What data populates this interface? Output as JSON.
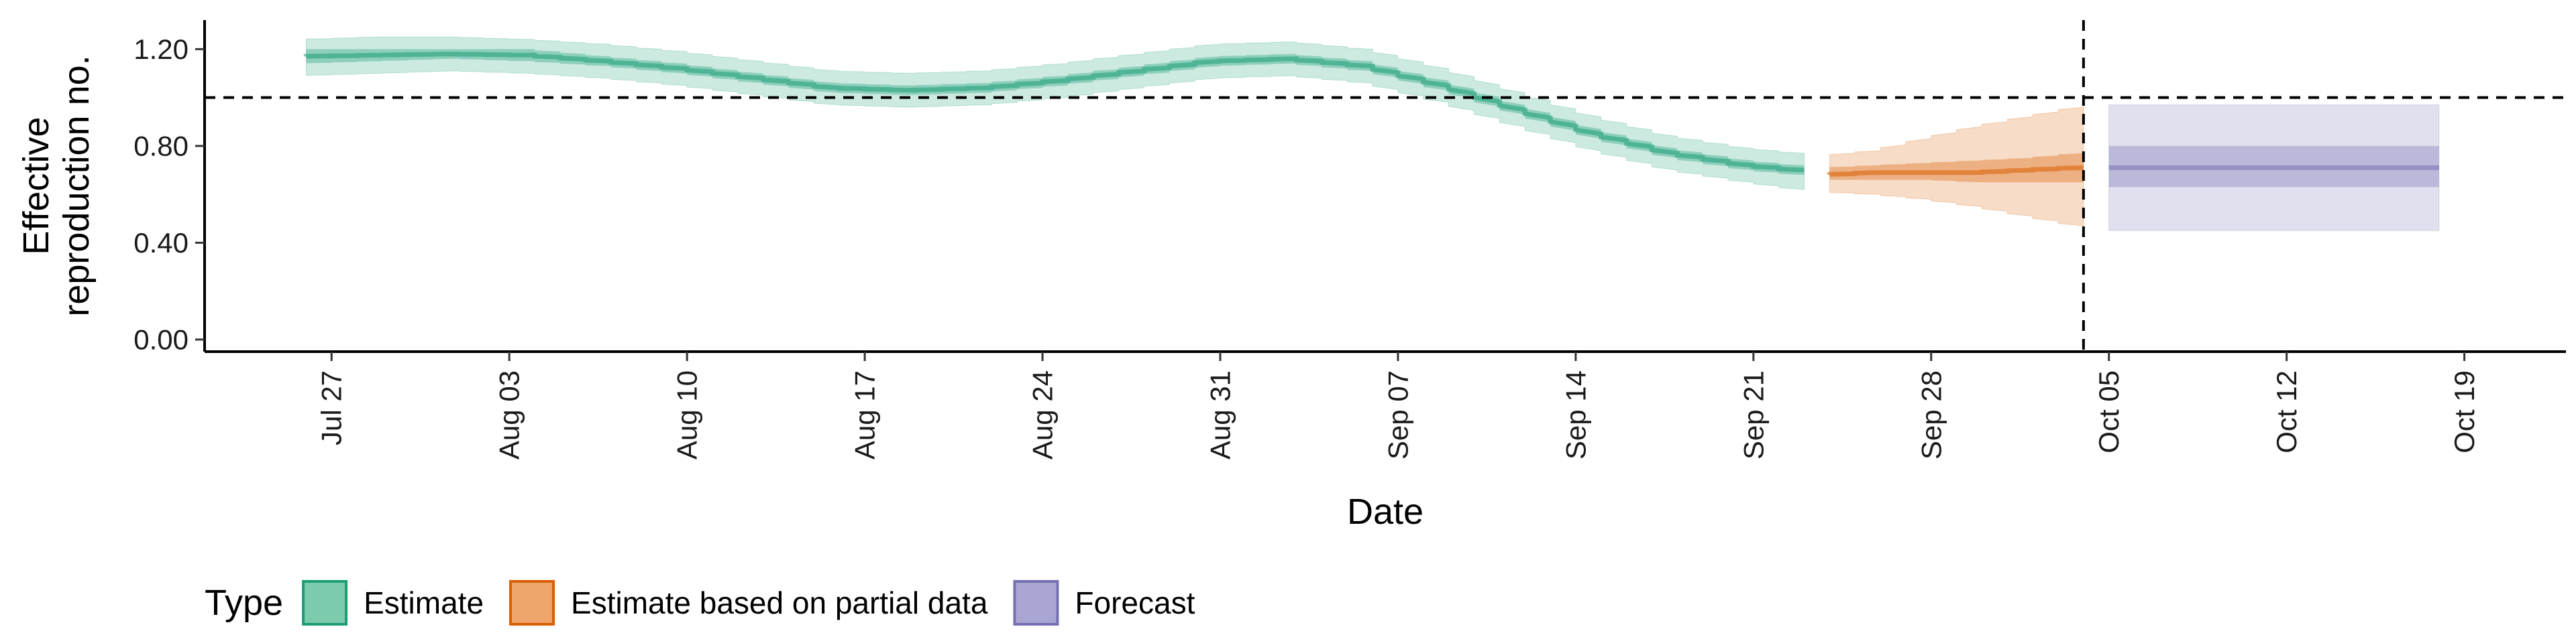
{
  "chart_data": {
    "type": "area",
    "xlabel": "Date",
    "ylabel_lines": [
      "Effective",
      "reproduction no."
    ],
    "x_ticks": [
      "Jul 27",
      "Aug 03",
      "Aug 10",
      "Aug 17",
      "Aug 24",
      "Aug 31",
      "Sep 07",
      "Sep 14",
      "Sep 21",
      "Sep 28",
      "Oct 05",
      "Oct 12",
      "Oct 19"
    ],
    "x_tick_dates": [
      "2020-07-27",
      "2020-08-03",
      "2020-08-10",
      "2020-08-17",
      "2020-08-24",
      "2020-08-31",
      "2020-09-07",
      "2020-09-14",
      "2020-09-21",
      "2020-09-28",
      "2020-10-05",
      "2020-10-12",
      "2020-10-19"
    ],
    "y_ticks": [
      "0.00",
      "0.40",
      "0.80",
      "1.20"
    ],
    "y_tick_values": [
      0.0,
      0.4,
      0.8,
      1.2
    ],
    "xlim": [
      "2020-07-22",
      "2020-10-23"
    ],
    "ylim": [
      -0.05,
      1.32
    ],
    "reference_lines": {
      "horizontal_y": 1.0,
      "vertical_x": "2020-10-04"
    },
    "legend": {
      "title": "Type",
      "position": "bottom-left",
      "entries": [
        {
          "label": "Estimate",
          "fill": "#7ccbad",
          "stroke": "#1b9e77"
        },
        {
          "label": "Estimate based on partial data",
          "fill": "#eea66c",
          "stroke": "#d95f02"
        },
        {
          "label": "Forecast",
          "fill": "#aaa6d3",
          "stroke": "#7570b3"
        }
      ]
    },
    "series": [
      {
        "name": "Estimate",
        "color": "#1b9e77",
        "points": [
          [
            "2020-07-26",
            1.17,
            1.09,
            1.24,
            1.14,
            1.2
          ],
          [
            "2020-07-29",
            1.175,
            1.1,
            1.25,
            1.15,
            1.2
          ],
          [
            "2020-08-01",
            1.18,
            1.11,
            1.25,
            1.16,
            1.2
          ],
          [
            "2020-08-04",
            1.175,
            1.1,
            1.24,
            1.15,
            1.2
          ],
          [
            "2020-08-07",
            1.15,
            1.08,
            1.22,
            1.13,
            1.17
          ],
          [
            "2020-08-10",
            1.12,
            1.05,
            1.19,
            1.1,
            1.14
          ],
          [
            "2020-08-13",
            1.08,
            1.01,
            1.15,
            1.06,
            1.1
          ],
          [
            "2020-08-16",
            1.04,
            0.97,
            1.11,
            1.02,
            1.06
          ],
          [
            "2020-08-19",
            1.03,
            0.96,
            1.1,
            1.01,
            1.05
          ],
          [
            "2020-08-22",
            1.04,
            0.97,
            1.11,
            1.02,
            1.06
          ],
          [
            "2020-08-25",
            1.07,
            1.0,
            1.14,
            1.05,
            1.09
          ],
          [
            "2020-08-28",
            1.11,
            1.04,
            1.18,
            1.09,
            1.13
          ],
          [
            "2020-08-31",
            1.15,
            1.08,
            1.22,
            1.13,
            1.17
          ],
          [
            "2020-09-03",
            1.16,
            1.09,
            1.23,
            1.14,
            1.18
          ],
          [
            "2020-09-06",
            1.13,
            1.06,
            1.2,
            1.11,
            1.15
          ],
          [
            "2020-09-09",
            1.05,
            0.98,
            1.12,
            1.03,
            1.07
          ],
          [
            "2020-09-12",
            0.95,
            0.88,
            1.02,
            0.93,
            0.97
          ],
          [
            "2020-09-15",
            0.85,
            0.78,
            0.92,
            0.83,
            0.87
          ],
          [
            "2020-09-18",
            0.77,
            0.7,
            0.84,
            0.75,
            0.79
          ],
          [
            "2020-09-21",
            0.72,
            0.65,
            0.79,
            0.7,
            0.74
          ],
          [
            "2020-09-23",
            0.7,
            0.62,
            0.77,
            0.68,
            0.72
          ]
        ]
      },
      {
        "name": "Estimate based on partial data",
        "color": "#d95f02",
        "points": [
          [
            "2020-09-24",
            0.68,
            0.61,
            0.76,
            0.66,
            0.71
          ],
          [
            "2020-09-26",
            0.69,
            0.6,
            0.78,
            0.66,
            0.72
          ],
          [
            "2020-09-28",
            0.69,
            0.58,
            0.83,
            0.66,
            0.73
          ],
          [
            "2020-09-30",
            0.69,
            0.55,
            0.88,
            0.65,
            0.74
          ],
          [
            "2020-10-02",
            0.7,
            0.51,
            0.92,
            0.65,
            0.75
          ],
          [
            "2020-10-04",
            0.71,
            0.47,
            0.96,
            0.65,
            0.77
          ]
        ]
      },
      {
        "name": "Forecast",
        "color": "#7570b3",
        "points": [
          [
            "2020-10-05",
            0.71,
            0.45,
            0.97,
            0.63,
            0.8
          ],
          [
            "2020-10-18",
            0.71,
            0.45,
            0.97,
            0.63,
            0.8
          ]
        ]
      }
    ]
  }
}
